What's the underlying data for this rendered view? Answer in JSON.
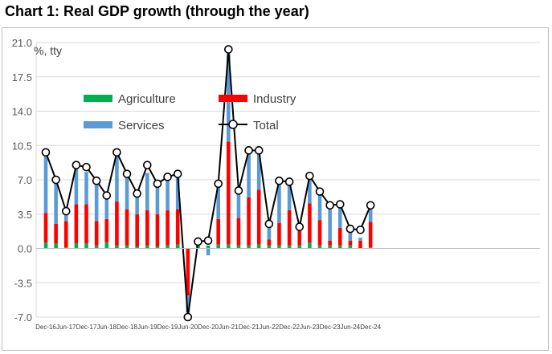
{
  "chart_data": {
    "type": "bar",
    "title": "Chart 1: Real GDP growth (through the year)",
    "ylabel": "%, tty",
    "ylim": [
      -7.0,
      21.0
    ],
    "yticks": [
      "21.0",
      "17.5",
      "14.0",
      "10.5",
      "7.0",
      "3.5",
      "0.0",
      "-3.5",
      "-7.0"
    ],
    "x_tick_labels": [
      "Dec-16",
      "Jun-17",
      "Dec-17",
      "Jun-18",
      "Dec-18",
      "Jun-19",
      "Dec-19",
      "Jun-20",
      "Dec-20",
      "Jun-21",
      "Dec-21",
      "Jun-22",
      "Dec-22",
      "Jun-23",
      "Dec-23",
      "Jun-24",
      "Dec-24"
    ],
    "categories": [
      "Dec-16",
      "Mar-17",
      "Jun-17",
      "Sep-17",
      "Dec-17",
      "Mar-18",
      "Jun-18",
      "Sep-18",
      "Dec-18",
      "Mar-19",
      "Jun-19",
      "Sep-19",
      "Dec-19",
      "Mar-20",
      "Jun-20",
      "Sep-20",
      "Dec-20",
      "Mar-21",
      "Jun-21",
      "Sep-21",
      "Dec-21",
      "Mar-22",
      "Jun-22",
      "Sep-22",
      "Dec-22",
      "Mar-23",
      "Jun-23",
      "Sep-23",
      "Dec-23",
      "Mar-24",
      "Jun-24",
      "Sep-24",
      "Dec-24"
    ],
    "series": [
      {
        "name": "Agriculture",
        "type": "bar",
        "color": "#00b050",
        "values": [
          0.6,
          0.5,
          0.1,
          0.5,
          0.5,
          0.3,
          0.6,
          0.3,
          0.3,
          0.2,
          0.3,
          0.2,
          0.3,
          0.4,
          0.0,
          0.3,
          0.3,
          0.4,
          0.4,
          0.3,
          0.3,
          0.4,
          0.3,
          0.3,
          0.3,
          0.3,
          0.6,
          0.3,
          0.3,
          0.3,
          0.3,
          0.0,
          0.1
        ]
      },
      {
        "name": "Industry",
        "type": "bar",
        "color": "#ff0000",
        "values": [
          3.0,
          2.0,
          2.7,
          4.0,
          4.0,
          2.5,
          2.4,
          4.5,
          3.7,
          3.3,
          3.6,
          3.3,
          3.6,
          3.6,
          -4.8,
          0.0,
          0.0,
          2.6,
          10.5,
          2.8,
          4.9,
          5.6,
          0.6,
          2.3,
          3.6,
          1.7,
          4.0,
          2.6,
          0.5,
          1.8,
          0.5,
          0.8,
          2.6
        ]
      },
      {
        "name": "Services",
        "type": "bar",
        "color": "#5b9bd5",
        "values": [
          6.2,
          4.5,
          1.0,
          3.7,
          3.3,
          4.2,
          2.0,
          4.9,
          3.5,
          1.9,
          3.8,
          3.1,
          3.2,
          3.6,
          -1.7,
          0.1,
          -0.7,
          3.5,
          8.9,
          2.7,
          4.7,
          3.8,
          1.6,
          4.2,
          2.8,
          0.1,
          2.6,
          2.9,
          3.5,
          2.3,
          1.2,
          0.3,
          1.5
        ]
      },
      {
        "name": "Total",
        "type": "line",
        "color": "#000000",
        "values": [
          9.8,
          7.0,
          3.8,
          8.5,
          8.3,
          6.9,
          5.4,
          9.8,
          7.6,
          5.6,
          8.5,
          6.6,
          7.3,
          7.6,
          -7.0,
          0.7,
          0.8,
          6.6,
          20.3,
          5.9,
          10.0,
          10.0,
          2.5,
          6.9,
          6.8,
          2.2,
          7.4,
          5.8,
          4.4,
          4.5,
          2.0,
          1.9,
          4.4
        ]
      }
    ],
    "legend": {
      "position": "top-left",
      "entries": [
        "Agriculture",
        "Industry",
        "Services",
        "Total"
      ]
    },
    "grid": true
  }
}
